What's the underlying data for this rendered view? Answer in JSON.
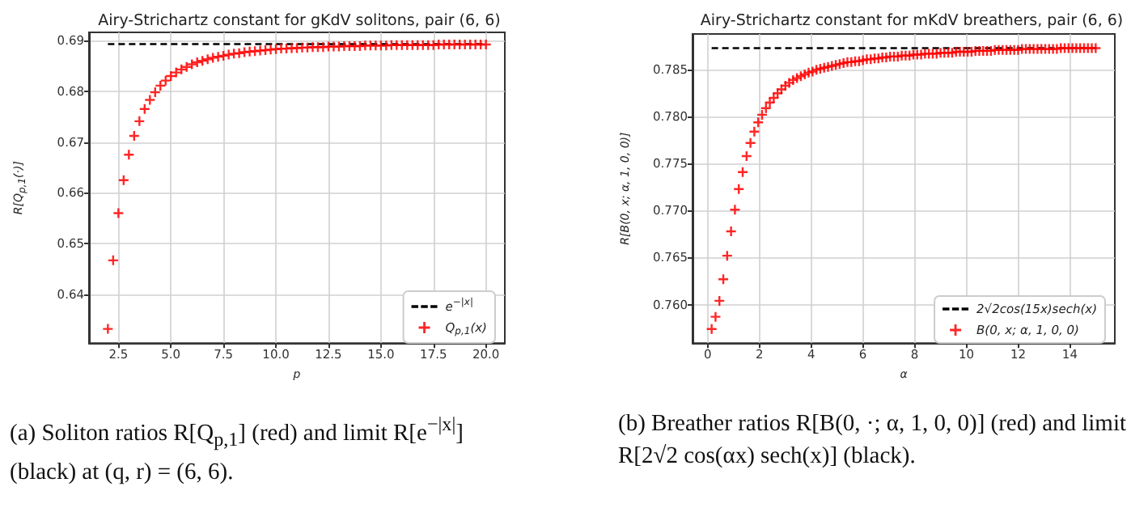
{
  "chart_data": [
    {
      "type": "scatter",
      "title": "Airy-Strichartz constant for gKdV solitons, pair (6, 6)",
      "xlabel": "p",
      "ylabel": "R[Q$_{p,1}$(·)]",
      "x": [
        2,
        2.25,
        2.5,
        2.75,
        3,
        3.25,
        3.5,
        3.75,
        4,
        4.25,
        4.5,
        4.75,
        5,
        5.25,
        5.5,
        5.75,
        6,
        6.25,
        6.5,
        6.75,
        7,
        7.25,
        7.5,
        7.75,
        8,
        8.25,
        8.5,
        8.75,
        9,
        9.25,
        9.5,
        9.75,
        10,
        10.25,
        10.5,
        10.75,
        11,
        11.25,
        11.5,
        11.75,
        12,
        12.25,
        12.5,
        12.75,
        13,
        13.25,
        13.5,
        13.75,
        14,
        14.25,
        14.5,
        14.75,
        15,
        15.25,
        15.5,
        15.75,
        16,
        16.25,
        16.5,
        16.75,
        17,
        17.25,
        17.5,
        17.75,
        18,
        18.25,
        18.5,
        18.75,
        19,
        19.25,
        19.5,
        19.75,
        20
      ],
      "series": [
        {
          "name": "e$^{−|x|}$",
          "type": "line",
          "color": "#000000",
          "line_style": "dashed",
          "marker": "none",
          "x": [
            2,
            20
          ],
          "values": [
            0.6893,
            0.6893
          ]
        },
        {
          "name": "Q$_{p,1}$(x)",
          "color": "#ff0000",
          "values": [
            0.6332,
            0.6467,
            0.656,
            0.6625,
            0.6675,
            0.6712,
            0.6741,
            0.6765,
            0.6783,
            0.6798,
            0.6811,
            0.6821,
            0.683,
            0.6837,
            0.6843,
            0.6848,
            0.6853,
            0.6857,
            0.686,
            0.6863,
            0.6866,
            0.6868,
            0.687,
            0.6872,
            0.6874,
            0.6875,
            0.6877,
            0.6878,
            0.6879,
            0.688,
            0.6881,
            0.6882,
            0.6883,
            0.6884,
            0.6884,
            0.6885,
            0.6885,
            0.6886,
            0.6886,
            0.6887,
            0.6887,
            0.6887,
            0.6888,
            0.6888,
            0.6888,
            0.6889,
            0.6889,
            0.6889,
            0.6889,
            0.689,
            0.689,
            0.689,
            0.689,
            0.689,
            0.6891,
            0.6891,
            0.6891,
            0.6891,
            0.6891,
            0.6891,
            0.6891,
            0.6891,
            0.6891,
            0.6892,
            0.6892,
            0.6892,
            0.6892,
            0.6892,
            0.6892,
            0.6892,
            0.6892,
            0.6892,
            0.6892
          ]
        }
      ],
      "marker": "cross",
      "xlim": [
        1.1,
        20.9
      ],
      "ylim": [
        0.6304,
        0.6916
      ],
      "xticks": [
        {
          "value": 2.5,
          "label": "2.5"
        },
        {
          "value": 5,
          "label": "5.0"
        },
        {
          "value": 7.5,
          "label": "7.5"
        },
        {
          "value": 10,
          "label": "10.0"
        },
        {
          "value": 12.5,
          "label": "12.5"
        },
        {
          "value": 15,
          "label": "15.0"
        },
        {
          "value": 17.5,
          "label": "17.5"
        },
        {
          "value": 20,
          "label": "20.0"
        }
      ],
      "yticks": [
        0.64,
        0.65,
        0.66,
        0.67,
        0.68,
        0.69
      ],
      "grid": true,
      "legend": "bottom right",
      "annotations": [
        "(a) Soliton ratios R[Q$_{p,1}$] (red) and limit R[e$^{−|x|}$] (black) at (q, r) = (6, 6)."
      ]
    },
    {
      "type": "scatter",
      "title": "Airy-Strichartz constant for mKdV breathers, pair (6, 6)",
      "xlabel": "α",
      "ylabel": "R[B(0, x; α, 1, 0, 0)]",
      "x": [
        0.15,
        0.3,
        0.45,
        0.6,
        0.75,
        0.9,
        1.05,
        1.2,
        1.35,
        1.5,
        1.65,
        1.8,
        1.95,
        2.1,
        2.25,
        2.4,
        2.55,
        2.7,
        2.85,
        3,
        3.15,
        3.3,
        3.45,
        3.6,
        3.75,
        3.9,
        4.05,
        4.2,
        4.35,
        4.5,
        4.65,
        4.8,
        4.95,
        5.1,
        5.25,
        5.4,
        5.55,
        5.7,
        5.85,
        6,
        6.15,
        6.3,
        6.45,
        6.6,
        6.75,
        6.9,
        7.05,
        7.2,
        7.35,
        7.5,
        7.65,
        7.8,
        7.95,
        8.1,
        8.25,
        8.4,
        8.55,
        8.7,
        8.85,
        9,
        9.15,
        9.3,
        9.45,
        9.6,
        9.75,
        9.9,
        10.05,
        10.2,
        10.35,
        10.5,
        10.65,
        10.8,
        10.95,
        11.1,
        11.25,
        11.4,
        11.55,
        11.7,
        11.85,
        12,
        12.15,
        12.3,
        12.45,
        12.6,
        12.75,
        12.9,
        13.05,
        13.2,
        13.35,
        13.5,
        13.65,
        13.8,
        13.95,
        14.1,
        14.25,
        14.4,
        14.55,
        14.7,
        14.85,
        15
      ],
      "series": [
        {
          "name": "2√2cos(15x)sech(x)",
          "type": "line",
          "color": "#000000",
          "line_style": "dashed",
          "marker": "none",
          "x": [
            0.15,
            15
          ],
          "values": [
            0.7873,
            0.7873
          ]
        },
        {
          "name": "B(0, x; α, 1, 0, 0)",
          "color": "#ff0000",
          "values": [
            0.7574,
            0.7587,
            0.7604,
            0.7627,
            0.7652,
            0.7678,
            0.7701,
            0.7723,
            0.7741,
            0.7758,
            0.7772,
            0.7784,
            0.7794,
            0.7802,
            0.7809,
            0.7815,
            0.782,
            0.7825,
            0.7829,
            0.7833,
            0.7836,
            0.7839,
            0.7841,
            0.7843,
            0.7845,
            0.7847,
            0.7848,
            0.785,
            0.7851,
            0.7852,
            0.7853,
            0.7854,
            0.7855,
            0.7856,
            0.7857,
            0.7858,
            0.7858,
            0.7859,
            0.7859,
            0.786,
            0.7861,
            0.7861,
            0.7862,
            0.7862,
            0.7863,
            0.7863,
            0.7864,
            0.7864,
            0.7864,
            0.7865,
            0.7865,
            0.7865,
            0.7866,
            0.7866,
            0.7866,
            0.7867,
            0.7867,
            0.7867,
            0.7867,
            0.7868,
            0.7868,
            0.7868,
            0.7868,
            0.7869,
            0.7869,
            0.7869,
            0.7869,
            0.7869,
            0.787,
            0.787,
            0.787,
            0.787,
            0.787,
            0.7871,
            0.7871,
            0.7871,
            0.7871,
            0.7871,
            0.7871,
            0.7871,
            0.7872,
            0.7872,
            0.7872,
            0.7872,
            0.7872,
            0.7872,
            0.7872,
            0.7872,
            0.7872,
            0.7872,
            0.7873,
            0.7873,
            0.7873,
            0.7873,
            0.7873,
            0.7873,
            0.7873,
            0.7873,
            0.7873,
            0.7873
          ]
        }
      ],
      "marker": "cross",
      "xlim": [
        -0.59,
        15.74
      ],
      "ylim": [
        0.7559,
        0.7888
      ],
      "xticks": [
        0,
        2,
        4,
        6,
        8,
        10,
        12,
        14
      ],
      "yticks": [
        {
          "value": 0.76,
          "label": "0.760"
        },
        0.765,
        {
          "value": 0.77,
          "label": "0.770"
        },
        0.775,
        {
          "value": 0.78,
          "label": "0.780"
        },
        0.785
      ],
      "grid": true,
      "legend": "bottom right",
      "annotations": [
        "(b) Breather ratios R[B(0, ·; α, 1, 0, 0)] (red) and limit R[2√2 cos(αx) sech(x)] (black)."
      ]
    }
  ]
}
